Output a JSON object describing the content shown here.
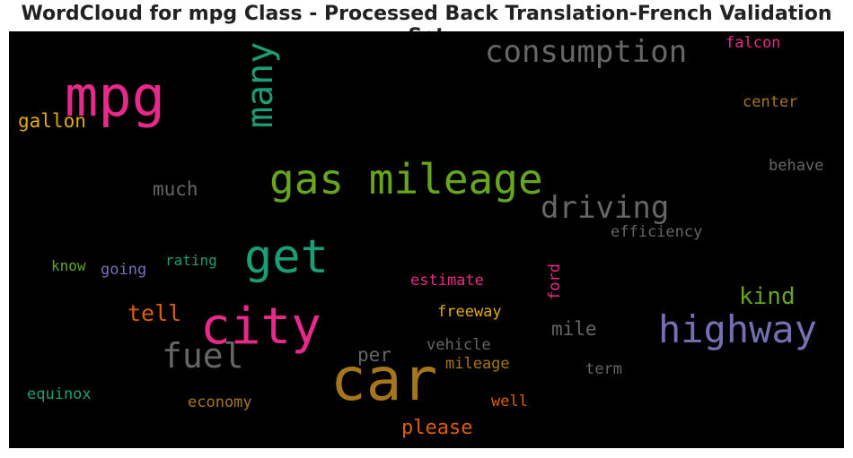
{
  "chart_data": {
    "type": "wordcloud",
    "title": "WordCloud for mpg Class - Processed Back Translation-French Validation Set",
    "words": [
      {
        "text": "mpg",
        "weight": 62,
        "color": "#e7298a"
      },
      {
        "text": "car",
        "weight": 66,
        "color": "#a6761d"
      },
      {
        "text": "city",
        "weight": 56,
        "color": "#e7298a"
      },
      {
        "text": "get",
        "weight": 52,
        "color": "#1b9e77"
      },
      {
        "text": "gas mileage",
        "weight": 46,
        "color": "#66a61e"
      },
      {
        "text": "many",
        "weight": 40,
        "color": "#1b9e77",
        "vertical": true
      },
      {
        "text": "highway",
        "weight": 42,
        "color": "#7570b3"
      },
      {
        "text": "consumption",
        "weight": 34,
        "color": "#666666"
      },
      {
        "text": "fuel",
        "weight": 38,
        "color": "#666666"
      },
      {
        "text": "driving",
        "weight": 34,
        "color": "#666666"
      },
      {
        "text": "kind",
        "weight": 26,
        "color": "#66a61e"
      },
      {
        "text": "tell",
        "weight": 25,
        "color": "#d95f02"
      },
      {
        "text": "much",
        "weight": 21,
        "color": "#666666"
      },
      {
        "text": "gallon",
        "weight": 21,
        "color": "#e6ab02"
      },
      {
        "text": "please",
        "weight": 22,
        "color": "#d95f02"
      },
      {
        "text": "mile",
        "weight": 21,
        "color": "#666666"
      },
      {
        "text": "per",
        "weight": 21,
        "color": "#666666"
      },
      {
        "text": "efficiency",
        "weight": 17,
        "color": "#666666"
      },
      {
        "text": "center",
        "weight": 17,
        "color": "#a6761d"
      },
      {
        "text": "behave",
        "weight": 17,
        "color": "#666666"
      },
      {
        "text": "falcon",
        "weight": 17,
        "color": "#e7298a"
      },
      {
        "text": "estimate",
        "weight": 17,
        "color": "#e7298a"
      },
      {
        "text": "freeway",
        "weight": 17,
        "color": "#e6ab02"
      },
      {
        "text": "ford",
        "weight": 17,
        "color": "#e7298a",
        "vertical": true
      },
      {
        "text": "vehicle",
        "weight": 17,
        "color": "#666666"
      },
      {
        "text": "mileage",
        "weight": 17,
        "color": "#a6761d"
      },
      {
        "text": "well",
        "weight": 17,
        "color": "#d95f02"
      },
      {
        "text": "term",
        "weight": 17,
        "color": "#666666"
      },
      {
        "text": "economy",
        "weight": 17,
        "color": "#a6761d"
      },
      {
        "text": "equinox",
        "weight": 17,
        "color": "#1b9e77"
      },
      {
        "text": "know",
        "weight": 16,
        "color": "#66a61e"
      },
      {
        "text": "going",
        "weight": 17,
        "color": "#7570b3"
      },
      {
        "text": "rating",
        "weight": 16,
        "color": "#1b9e77"
      }
    ]
  }
}
